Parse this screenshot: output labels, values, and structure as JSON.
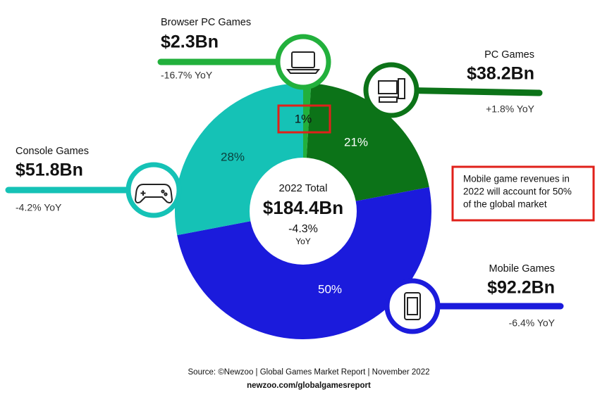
{
  "chart_data": {
    "type": "donut",
    "categories": [
      "Browser PC Games",
      "PC Games",
      "Mobile Games",
      "Console Games"
    ],
    "values": [
      1,
      21,
      50,
      28
    ],
    "value_labels": [
      "1%",
      "21%",
      "50%",
      "28%"
    ],
    "colors": [
      "#22b03c",
      "#0c7318",
      "#1b1bdc",
      "#15c2b6"
    ],
    "revenue": [
      "$2.3Bn",
      "$38.2Bn",
      "$92.2Bn",
      "$51.8Bn"
    ],
    "yoy": [
      "-16.7% YoY",
      "+1.8% YoY",
      "-6.4% YoY",
      "-4.2% YoY"
    ],
    "center": {
      "title": "2022 Total",
      "value": "$184.4Bn",
      "change": "-4.3%",
      "change_unit": "YoY"
    },
    "annotation": [
      "Mobile game revenues in",
      "2022 will account for 50%",
      "of the global market"
    ],
    "source": "Source: ©Newzoo | Global Games Market Report | November 2022",
    "url": "newzoo.com/globalgamesreport"
  }
}
